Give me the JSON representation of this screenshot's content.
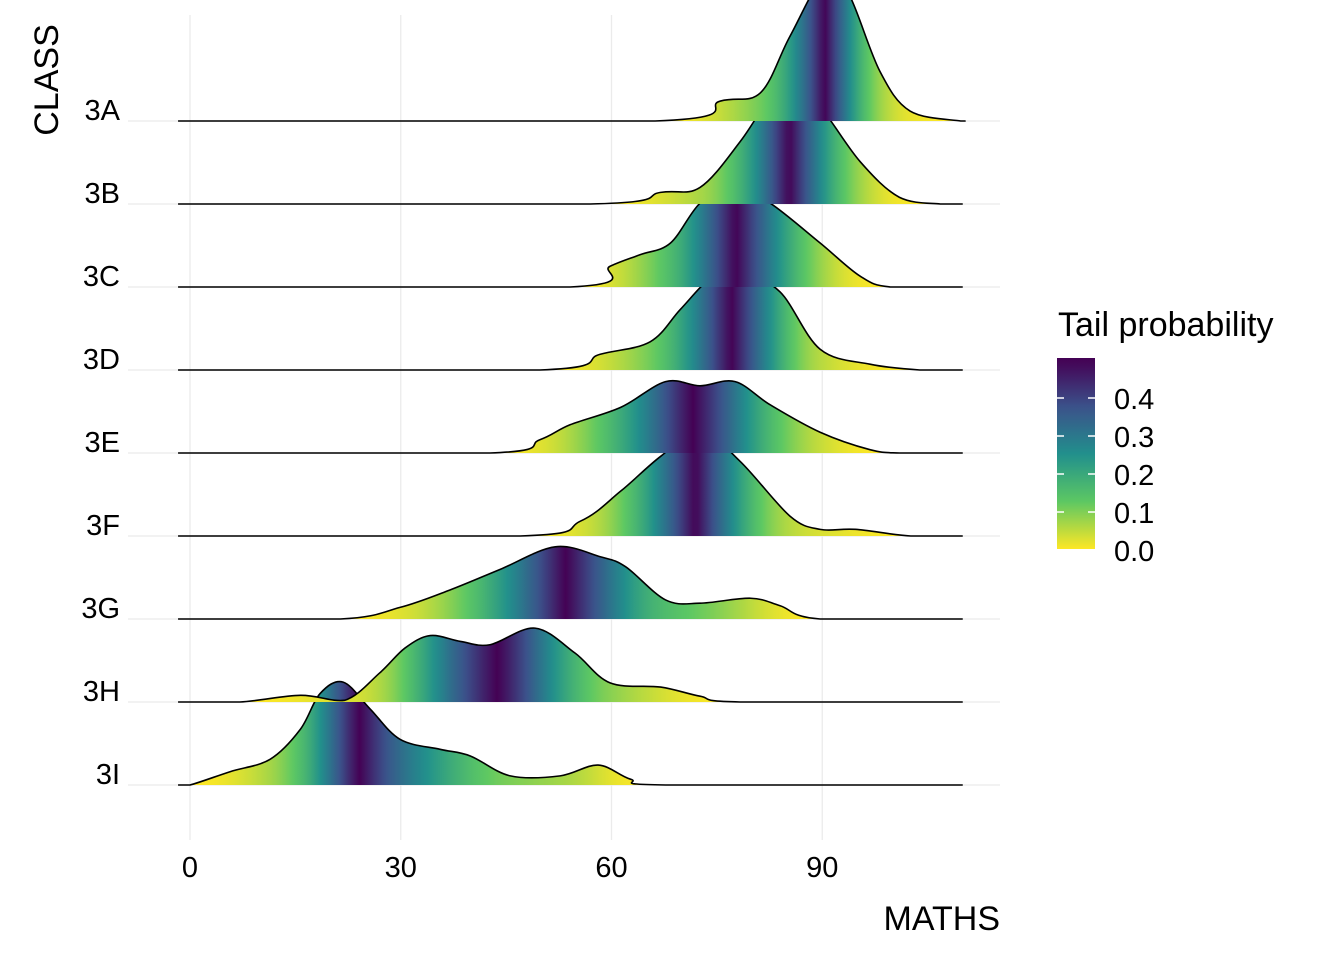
{
  "chart_data": {
    "type": "ridgeline",
    "xlabel": "MATHS",
    "ylabel": "CLASS",
    "xlim": [
      -1.7,
      110
    ],
    "x_ticks": [
      0,
      30,
      60,
      90
    ],
    "x_tick_labels": [
      "0",
      "30",
      "60",
      "90"
    ],
    "grid": true,
    "legend": {
      "title": "Tail probability",
      "placement": "right",
      "range": [
        0,
        0.5
      ],
      "ticks": [
        0.0,
        0.1,
        0.2,
        0.3,
        0.4
      ],
      "tick_labels": [
        "0.0",
        "0.1",
        "0.2",
        "0.3",
        "0.4"
      ],
      "palette": "viridis (reversed)",
      "colors": [
        "#440154",
        "#3b528b",
        "#21908c",
        "#5dc863",
        "#fde725"
      ]
    },
    "series": [
      {
        "name": "3I",
        "density": [
          [
            -1.7,
            0
          ],
          [
            0,
            0
          ],
          [
            5.7,
            0.16
          ],
          [
            11.4,
            0.31
          ],
          [
            15.7,
            0.67
          ],
          [
            18.5,
            1.1
          ],
          [
            21.8,
            1.24
          ],
          [
            25.6,
            0.92
          ],
          [
            29.9,
            0.55
          ],
          [
            35.6,
            0.43
          ],
          [
            39.9,
            0.35
          ],
          [
            45.6,
            0.11
          ],
          [
            52.7,
            0.11
          ],
          [
            58.1,
            0.24
          ],
          [
            62.7,
            0.07
          ],
          [
            67.7,
            0
          ],
          [
            110,
            0
          ]
        ]
      },
      {
        "name": "3H",
        "density": [
          [
            -1.7,
            0
          ],
          [
            7.1,
            0
          ],
          [
            15.7,
            0.08
          ],
          [
            22,
            0.02
          ],
          [
            27,
            0.35
          ],
          [
            30.6,
            0.65
          ],
          [
            34.2,
            0.8
          ],
          [
            38.5,
            0.73
          ],
          [
            42.7,
            0.69
          ],
          [
            49.1,
            0.89
          ],
          [
            54.8,
            0.59
          ],
          [
            59.8,
            0.23
          ],
          [
            67,
            0.18
          ],
          [
            72.6,
            0.07
          ],
          [
            78.3,
            0
          ],
          [
            110,
            0
          ]
        ]
      },
      {
        "name": "3G",
        "density": [
          [
            -1.7,
            0
          ],
          [
            21.4,
            0
          ],
          [
            29.9,
            0.14
          ],
          [
            37,
            0.35
          ],
          [
            44.2,
            0.6
          ],
          [
            52,
            0.87
          ],
          [
            58.4,
            0.75
          ],
          [
            62,
            0.63
          ],
          [
            67.7,
            0.23
          ],
          [
            72.6,
            0.19
          ],
          [
            79.8,
            0.25
          ],
          [
            84,
            0.16
          ],
          [
            89.7,
            0
          ],
          [
            110,
            0
          ]
        ]
      },
      {
        "name": "3F",
        "density": [
          [
            -1.7,
            0
          ],
          [
            47,
            0
          ],
          [
            55.6,
            0.18
          ],
          [
            61.3,
            0.54
          ],
          [
            67,
            0.96
          ],
          [
            72.6,
            1.27
          ],
          [
            78.3,
            0.9
          ],
          [
            85.4,
            0.24
          ],
          [
            89.7,
            0.08
          ],
          [
            94.7,
            0.08
          ],
          [
            102.6,
            0
          ],
          [
            110,
            0
          ]
        ]
      },
      {
        "name": "3E",
        "density": [
          [
            -1.7,
            0
          ],
          [
            42.7,
            0
          ],
          [
            49.8,
            0.16
          ],
          [
            54.1,
            0.34
          ],
          [
            61.3,
            0.55
          ],
          [
            67.7,
            0.86
          ],
          [
            72.6,
            0.81
          ],
          [
            77.6,
            0.86
          ],
          [
            82.6,
            0.58
          ],
          [
            89.7,
            0.25
          ],
          [
            96.8,
            0.04
          ],
          [
            101,
            0
          ],
          [
            110,
            0
          ]
        ]
      },
      {
        "name": "3D",
        "density": [
          [
            -1.7,
            0
          ],
          [
            49.8,
            0
          ],
          [
            58.4,
            0.19
          ],
          [
            65.5,
            0.34
          ],
          [
            69.8,
            0.73
          ],
          [
            74.1,
            1.1
          ],
          [
            78.3,
            1.19
          ],
          [
            84,
            0.94
          ],
          [
            89.7,
            0.25
          ],
          [
            96.8,
            0.07
          ],
          [
            103.9,
            0
          ],
          [
            110,
            0
          ]
        ]
      },
      {
        "name": "3C",
        "density": [
          [
            -1.7,
            0
          ],
          [
            54.1,
            0
          ],
          [
            59.8,
            0.25
          ],
          [
            64.1,
            0.39
          ],
          [
            68.4,
            0.53
          ],
          [
            72.6,
            1.01
          ],
          [
            77.3,
            1.23
          ],
          [
            82.6,
            1.01
          ],
          [
            89.7,
            0.53
          ],
          [
            95.4,
            0.13
          ],
          [
            99.7,
            0
          ],
          [
            110,
            0
          ]
        ]
      },
      {
        "name": "3B",
        "density": [
          [
            -1.7,
            0
          ],
          [
            57,
            0
          ],
          [
            67,
            0.14
          ],
          [
            72.6,
            0.2
          ],
          [
            78.3,
            0.75
          ],
          [
            82.6,
            1.29
          ],
          [
            85.4,
            1.47
          ],
          [
            89.7,
            1.17
          ],
          [
            95.4,
            0.51
          ],
          [
            101,
            0.08
          ],
          [
            106.8,
            0
          ],
          [
            110,
            0
          ]
        ]
      },
      {
        "name": "3A",
        "density": [
          [
            -1.7,
            0
          ],
          [
            66.2,
            0
          ],
          [
            75.5,
            0.24
          ],
          [
            81.2,
            0.34
          ],
          [
            85.4,
            1.02
          ],
          [
            90.7,
            1.8
          ],
          [
            93.9,
            1.51
          ],
          [
            98.2,
            0.6
          ],
          [
            102.5,
            0.12
          ],
          [
            109.7,
            0
          ],
          [
            110,
            0
          ]
        ]
      }
    ]
  }
}
